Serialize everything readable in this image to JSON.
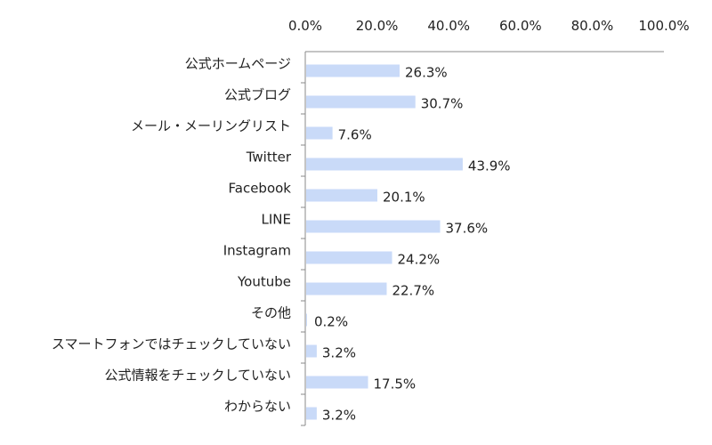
{
  "chart_data": {
    "type": "bar",
    "orientation": "horizontal",
    "categories": [
      "公式ホームページ",
      "公式ブログ",
      "メール・メーリングリスト",
      "Twitter",
      "Facebook",
      "LINE",
      "Instagram",
      "Youtube",
      "その他",
      "スマートフォンではチェックしていない",
      "公式情報をチェックしていない",
      "わからない"
    ],
    "values": [
      26.3,
      30.7,
      7.6,
      43.9,
      20.1,
      37.6,
      24.2,
      22.7,
      0.2,
      3.2,
      17.5,
      3.2
    ],
    "value_labels": [
      "26.3%",
      "30.7%",
      "7.6%",
      "43.9%",
      "20.1%",
      "37.6%",
      "24.2%",
      "22.7%",
      "0.2%",
      "3.2%",
      "17.5%",
      "3.2%"
    ],
    "xlim": [
      0,
      100
    ],
    "xticks": [
      0,
      20,
      40,
      60,
      80,
      100
    ],
    "xtick_labels": [
      "0.0%",
      "20.0%",
      "40.0%",
      "60.0%",
      "80.0%",
      "100.0%"
    ],
    "axis_position": "top",
    "grid": false,
    "legend": "none",
    "bar_color": "#c9daf8",
    "axis_color": "#888888"
  }
}
